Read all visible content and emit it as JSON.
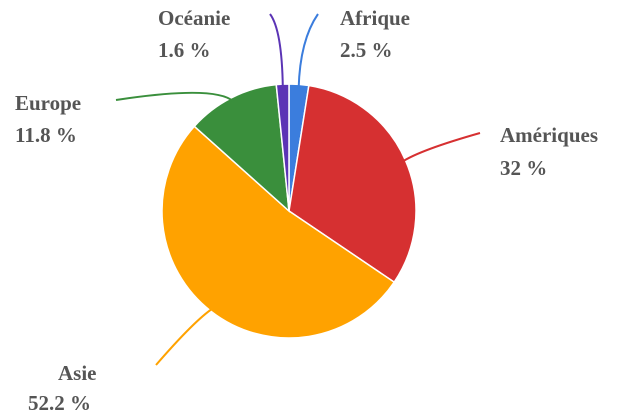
{
  "chart_data": {
    "type": "pie",
    "categories": [
      "Afrique",
      "Amériques",
      "Asie",
      "Europe",
      "Océanie"
    ],
    "values": [
      2.5,
      32,
      52.2,
      11.8,
      1.6
    ],
    "value_labels": [
      "2.5 %",
      "32 %",
      "52.2 %",
      "11.8 %",
      "1.6 %"
    ],
    "colors": [
      "#3b7ddd",
      "#d63031",
      "#ffa200",
      "#3a8f3c",
      "#5b34b5"
    ]
  }
}
